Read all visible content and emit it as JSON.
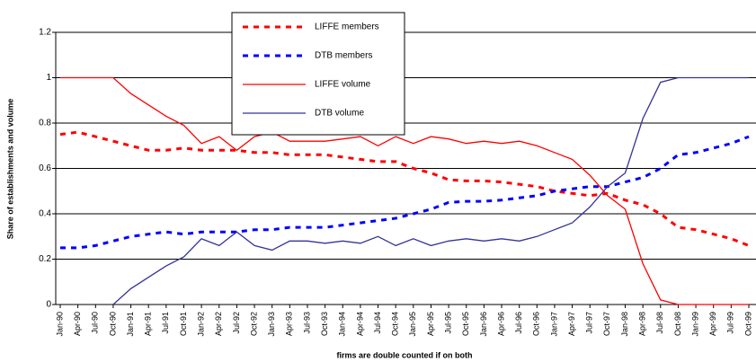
{
  "chart_data": {
    "type": "line",
    "ylabel": "Share of establishments and volume",
    "xlabel": "firms are double counted if on both",
    "categories": [
      "Jan-90",
      "Apr-90",
      "Jul-90",
      "Oct-90",
      "Jan-91",
      "Apr-91",
      "Jul-91",
      "Oct-91",
      "Jan-92",
      "Apr-92",
      "Jul-92",
      "Oct-92",
      "Jan-93",
      "Apr-93",
      "Jul-93",
      "Oct-93",
      "Jan-94",
      "Apr-94",
      "Jul-94",
      "Oct-94",
      "Jan-95",
      "Apr-95",
      "Jul-95",
      "Oct-95",
      "Jan-96",
      "Apr-96",
      "Jul-96",
      "Oct-96",
      "Jan-97",
      "Apr-97",
      "Jul-97",
      "Oct-97",
      "Jan-98",
      "Apr-98",
      "Jul-98",
      "Oct-98",
      "Jan-99",
      "Apr-99",
      "Jul-99",
      "Oct-99"
    ],
    "series": [
      {
        "name": "LIFFE members",
        "color": "#ff0000",
        "dashed": true,
        "values": [
          0.75,
          0.76,
          0.74,
          0.72,
          0.7,
          0.68,
          0.68,
          0.69,
          0.68,
          0.68,
          0.68,
          0.67,
          0.67,
          0.66,
          0.66,
          0.66,
          0.65,
          0.64,
          0.63,
          0.63,
          0.6,
          0.58,
          0.55,
          0.545,
          0.545,
          0.54,
          0.53,
          0.52,
          0.5,
          0.49,
          0.48,
          0.49,
          0.46,
          0.44,
          0.4,
          0.34,
          0.33,
          0.31,
          0.29,
          0.26
        ]
      },
      {
        "name": "DTB members",
        "color": "#0000ff",
        "dashed": true,
        "values": [
          0.25,
          0.25,
          0.26,
          0.28,
          0.3,
          0.31,
          0.32,
          0.31,
          0.32,
          0.32,
          0.32,
          0.33,
          0.33,
          0.34,
          0.34,
          0.34,
          0.35,
          0.36,
          0.37,
          0.38,
          0.4,
          0.42,
          0.45,
          0.455,
          0.455,
          0.46,
          0.47,
          0.48,
          0.5,
          0.51,
          0.52,
          0.52,
          0.54,
          0.56,
          0.6,
          0.66,
          0.67,
          0.69,
          0.71,
          0.74
        ]
      },
      {
        "name": "LIFFE volume",
        "color": "#ff0000",
        "dashed": false,
        "values": [
          1,
          1,
          1,
          1,
          0.93,
          0.88,
          0.83,
          0.79,
          0.71,
          0.74,
          0.68,
          0.74,
          0.76,
          0.72,
          0.72,
          0.72,
          0.73,
          0.74,
          0.7,
          0.74,
          0.71,
          0.74,
          0.73,
          0.71,
          0.72,
          0.71,
          0.72,
          0.7,
          0.67,
          0.64,
          0.57,
          0.48,
          0.42,
          0.18,
          0.02,
          0,
          0,
          0,
          0,
          0
        ]
      },
      {
        "name": "DTB volume",
        "color": "#333399",
        "dashed": false,
        "values": [
          null,
          null,
          null,
          0,
          0.07,
          0.12,
          0.17,
          0.21,
          0.29,
          0.26,
          0.32,
          0.26,
          0.24,
          0.28,
          0.28,
          0.27,
          0.28,
          0.27,
          0.3,
          0.26,
          0.29,
          0.26,
          0.28,
          0.29,
          0.28,
          0.29,
          0.28,
          0.3,
          0.33,
          0.36,
          0.43,
          0.52,
          0.58,
          0.82,
          0.98,
          1,
          1,
          1,
          1,
          1
        ]
      }
    ],
    "ylim": [
      0,
      1.2
    ],
    "yticks": [
      0,
      0.2,
      0.4,
      0.6,
      0.8,
      1,
      1.2
    ],
    "grid": true
  }
}
